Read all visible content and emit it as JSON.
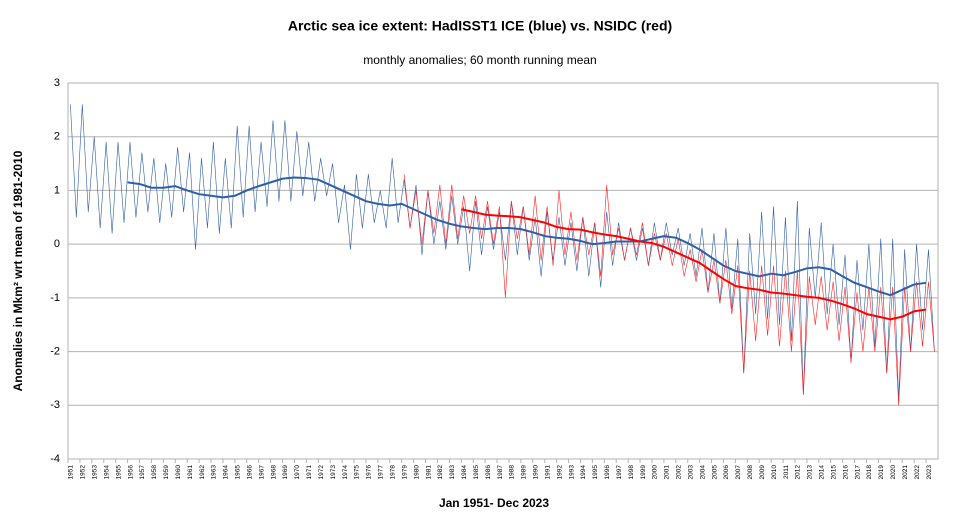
{
  "chart_data": {
    "type": "line",
    "title": "Arctic sea ice extent: HadISST1 ICE (blue) vs. NSIDC (red)",
    "subtitle": "monthly anomalies; 60 month running mean",
    "x_label": "Jan 1951- Dec 2023",
    "y_label": "Anomalies in Mkm² wrt mean of 1981-2010",
    "xlim": [
      1951,
      2024
    ],
    "ylim": [
      -4,
      3
    ],
    "yticks": [
      -4,
      -3,
      -2,
      -1,
      0,
      1,
      2,
      3
    ],
    "xticks": [
      1951,
      1952,
      1953,
      1954,
      1955,
      1956,
      1957,
      1958,
      1959,
      1960,
      1961,
      1962,
      1963,
      1964,
      1965,
      1966,
      1967,
      1968,
      1969,
      1970,
      1971,
      1972,
      1973,
      1974,
      1975,
      1976,
      1977,
      1978,
      1979,
      1980,
      1981,
      1982,
      1983,
      1984,
      1985,
      1986,
      1987,
      1988,
      1989,
      1990,
      1991,
      1992,
      1993,
      1994,
      1995,
      1996,
      1997,
      1998,
      1999,
      2000,
      2001,
      2002,
      2003,
      2004,
      2005,
      2006,
      2007,
      2008,
      2009,
      2010,
      2011,
      2012,
      2013,
      2014,
      2015,
      2016,
      2017,
      2018,
      2019,
      2020,
      2021,
      2022,
      2023
    ],
    "grid": true,
    "series": [
      {
        "color": "#2f5fa8",
        "width": 0.6,
        "x": [
          1951.2,
          1951.7,
          1952.2,
          1952.7,
          1953.2,
          1953.7,
          1954.2,
          1954.7,
          1955.2,
          1955.7,
          1956.2,
          1956.7,
          1957.2,
          1957.7,
          1958.2,
          1958.7,
          1959.2,
          1959.7,
          1960.2,
          1960.7,
          1961.2,
          1961.7,
          1962.2,
          1962.7,
          1963.2,
          1963.7,
          1964.2,
          1964.7,
          1965.2,
          1965.7,
          1966.2,
          1966.7,
          1967.2,
          1967.7,
          1968.2,
          1968.7,
          1969.2,
          1969.7,
          1970.2,
          1970.7,
          1971.2,
          1971.7,
          1972.2,
          1972.7,
          1973.2,
          1973.7,
          1974.2,
          1974.7,
          1975.2,
          1975.7,
          1976.2,
          1976.7,
          1977.2,
          1977.7,
          1978.2,
          1978.7,
          1979.2,
          1979.7,
          1980.2,
          1980.7,
          1981.2,
          1981.7,
          1982.2,
          1982.7,
          1983.2,
          1983.7,
          1984.2,
          1984.7,
          1985.2,
          1985.7,
          1986.2,
          1986.7,
          1987.2,
          1987.7,
          1988.2,
          1988.7,
          1989.2,
          1989.7,
          1990.2,
          1990.7,
          1991.2,
          1991.7,
          1992.2,
          1992.7,
          1993.2,
          1993.7,
          1994.2,
          1994.7,
          1995.2,
          1995.7,
          1996.2,
          1996.7,
          1997.2,
          1997.7,
          1998.2,
          1998.7,
          1999.2,
          1999.7,
          2000.2,
          2000.7,
          2001.2,
          2001.7,
          2002.2,
          2002.7,
          2003.2,
          2003.7,
          2004.2,
          2004.7,
          2005.2,
          2005.7,
          2006.2,
          2006.7,
          2007.2,
          2007.7,
          2008.2,
          2008.7,
          2009.2,
          2009.7,
          2010.2,
          2010.7,
          2011.2,
          2011.7,
          2012.2,
          2012.7,
          2013.2,
          2013.7,
          2014.2,
          2014.7,
          2015.2,
          2015.7,
          2016.2,
          2016.7,
          2017.2,
          2017.7,
          2018.2,
          2018.7,
          2019.2,
          2019.7,
          2020.2,
          2020.7,
          2021.2,
          2021.7,
          2022.2,
          2022.7,
          2023.2,
          2023.7
        ],
        "values": [
          2.6,
          0.5,
          2.6,
          0.6,
          2.0,
          0.3,
          1.9,
          0.2,
          1.9,
          0.4,
          1.9,
          0.5,
          1.7,
          0.6,
          1.6,
          0.4,
          1.5,
          0.5,
          1.8,
          0.6,
          1.7,
          -0.1,
          1.6,
          0.3,
          1.9,
          0.2,
          1.6,
          0.3,
          2.2,
          0.5,
          2.2,
          0.6,
          1.9,
          0.7,
          2.3,
          0.8,
          2.3,
          0.8,
          2.1,
          0.9,
          1.9,
          0.8,
          1.6,
          0.9,
          1.5,
          0.4,
          1.1,
          -0.1,
          1.3,
          0.3,
          1.3,
          0.4,
          1.0,
          0.3,
          1.6,
          0.4,
          1.2,
          0.3,
          1.1,
          -0.2,
          1.0,
          0.0,
          0.8,
          -0.1,
          0.9,
          0.0,
          0.7,
          -0.5,
          0.8,
          -0.2,
          0.7,
          -0.1,
          0.6,
          -0.3,
          0.8,
          -0.2,
          0.7,
          -0.3,
          0.5,
          -0.6,
          0.6,
          -0.3,
          0.5,
          -0.4,
          0.4,
          -0.5,
          0.5,
          -0.6,
          0.4,
          -0.8,
          0.6,
          -0.4,
          0.4,
          -0.3,
          0.3,
          -0.3,
          0.3,
          -0.4,
          0.4,
          -0.3,
          0.4,
          -0.2,
          0.3,
          -0.4,
          0.2,
          -0.6,
          0.3,
          -0.9,
          0.2,
          -1.1,
          0.3,
          -1.2,
          0.1,
          -2.4,
          0.2,
          -1.3,
          0.6,
          -1.4,
          0.7,
          -1.5,
          0.5,
          -1.8,
          0.8,
          -2.8,
          0.3,
          -1.0,
          0.4,
          -1.3,
          0.0,
          -1.5,
          -0.2,
          -2.2,
          -0.3,
          -1.6,
          0.0,
          -1.9,
          0.1,
          -2.4,
          0.1,
          -2.9,
          -0.1,
          -2.0,
          0.0,
          -1.6,
          -0.1,
          -2.0
        ]
      },
      {
        "color": "#ff2020",
        "width": 0.6,
        "x": [
          1979.2,
          1979.7,
          1980.2,
          1980.7,
          1981.2,
          1981.7,
          1982.2,
          1982.7,
          1983.2,
          1983.7,
          1984.2,
          1984.7,
          1985.2,
          1985.7,
          1986.2,
          1986.7,
          1987.2,
          1987.7,
          1988.2,
          1988.7,
          1989.2,
          1989.7,
          1990.2,
          1990.7,
          1991.2,
          1991.7,
          1992.2,
          1992.7,
          1993.2,
          1993.7,
          1994.2,
          1994.7,
          1995.2,
          1995.7,
          1996.2,
          1996.7,
          1997.2,
          1997.7,
          1998.2,
          1998.7,
          1999.2,
          1999.7,
          2000.2,
          2000.7,
          2001.2,
          2001.7,
          2002.2,
          2002.7,
          2003.2,
          2003.7,
          2004.2,
          2004.7,
          2005.2,
          2005.7,
          2006.2,
          2006.7,
          2007.2,
          2007.7,
          2008.2,
          2008.7,
          2009.2,
          2009.7,
          2010.2,
          2010.7,
          2011.2,
          2011.7,
          2012.2,
          2012.7,
          2013.2,
          2013.7,
          2014.2,
          2014.7,
          2015.2,
          2015.7,
          2016.2,
          2016.7,
          2017.2,
          2017.7,
          2018.2,
          2018.7,
          2019.2,
          2019.7,
          2020.2,
          2020.7,
          2021.2,
          2021.7,
          2022.2,
          2022.7,
          2023.2,
          2023.7
        ],
        "values": [
          1.3,
          0.3,
          1.0,
          0.0,
          1.0,
          0.2,
          1.1,
          0.0,
          1.1,
          0.1,
          0.9,
          0.2,
          0.9,
          0.1,
          0.8,
          0.0,
          0.7,
          -1.0,
          0.8,
          0.1,
          0.7,
          -0.2,
          0.9,
          -0.3,
          0.7,
          -0.4,
          1.0,
          -0.2,
          0.6,
          -0.3,
          0.5,
          -0.2,
          0.4,
          -0.6,
          1.1,
          -0.2,
          0.3,
          -0.3,
          0.3,
          -0.2,
          0.4,
          -0.4,
          0.2,
          -0.3,
          0.2,
          -0.4,
          0.1,
          -0.6,
          -0.1,
          -0.7,
          -0.1,
          -0.9,
          -0.3,
          -1.1,
          -0.3,
          -1.3,
          -0.4,
          -2.4,
          -0.5,
          -1.8,
          -0.4,
          -1.7,
          -0.4,
          -1.9,
          -0.5,
          -2.0,
          -0.5,
          -2.8,
          -0.6,
          -1.5,
          -0.6,
          -1.6,
          -0.7,
          -1.8,
          -0.8,
          -2.2,
          -0.9,
          -2.0,
          -0.8,
          -2.0,
          -0.8,
          -2.4,
          -0.8,
          -3.0,
          -0.8,
          -2.0,
          -0.7,
          -1.9,
          -0.7,
          -2.0
        ]
      },
      {
        "color": "#2f5fa8",
        "width": 2,
        "x": [
          1956,
          1957,
          1958,
          1959,
          1960,
          1961,
          1962,
          1963,
          1964,
          1965,
          1966,
          1967,
          1968,
          1969,
          1970,
          1971,
          1972,
          1973,
          1974,
          1975,
          1976,
          1977,
          1978,
          1979,
          1980,
          1981,
          1982,
          1983,
          1984,
          1985,
          1986,
          1987,
          1988,
          1989,
          1990,
          1991,
          1992,
          1993,
          1994,
          1995,
          1996,
          1997,
          1998,
          1999,
          2000,
          2001,
          2002,
          2003,
          2004,
          2005,
          2006,
          2007,
          2008,
          2009,
          2010,
          2011,
          2012,
          2013,
          2014,
          2015,
          2016,
          2017,
          2018,
          2019,
          2020,
          2021,
          2022,
          2023
        ],
        "values": [
          1.15,
          1.12,
          1.05,
          1.05,
          1.08,
          1.0,
          0.93,
          0.9,
          0.87,
          0.9,
          1.0,
          1.08,
          1.15,
          1.22,
          1.24,
          1.23,
          1.2,
          1.1,
          1.0,
          0.9,
          0.8,
          0.75,
          0.72,
          0.75,
          0.65,
          0.55,
          0.45,
          0.38,
          0.33,
          0.3,
          0.28,
          0.3,
          0.3,
          0.28,
          0.22,
          0.15,
          0.12,
          0.1,
          0.06,
          0.0,
          0.02,
          0.05,
          0.05,
          0.05,
          0.1,
          0.15,
          0.12,
          0.02,
          -0.1,
          -0.25,
          -0.4,
          -0.5,
          -0.55,
          -0.6,
          -0.55,
          -0.58,
          -0.52,
          -0.45,
          -0.43,
          -0.47,
          -0.6,
          -0.72,
          -0.8,
          -0.88,
          -0.95,
          -0.85,
          -0.75,
          -0.72
        ]
      },
      {
        "color": "#ff0000",
        "width": 2,
        "x": [
          1984,
          1985,
          1986,
          1987,
          1988,
          1989,
          1990,
          1991,
          1992,
          1993,
          1994,
          1995,
          1996,
          1997,
          1998,
          1999,
          2000,
          2001,
          2002,
          2003,
          2004,
          2005,
          2006,
          2007,
          2008,
          2009,
          2010,
          2011,
          2012,
          2013,
          2014,
          2015,
          2016,
          2017,
          2018,
          2019,
          2020,
          2021,
          2022,
          2023
        ],
        "values": [
          0.65,
          0.6,
          0.55,
          0.53,
          0.52,
          0.5,
          0.45,
          0.4,
          0.32,
          0.28,
          0.27,
          0.22,
          0.18,
          0.15,
          0.1,
          0.05,
          0.02,
          -0.05,
          -0.15,
          -0.25,
          -0.35,
          -0.5,
          -0.65,
          -0.78,
          -0.82,
          -0.85,
          -0.9,
          -0.92,
          -0.95,
          -0.98,
          -1.0,
          -1.05,
          -1.12,
          -1.2,
          -1.3,
          -1.35,
          -1.4,
          -1.35,
          -1.25,
          -1.22
        ]
      }
    ]
  }
}
